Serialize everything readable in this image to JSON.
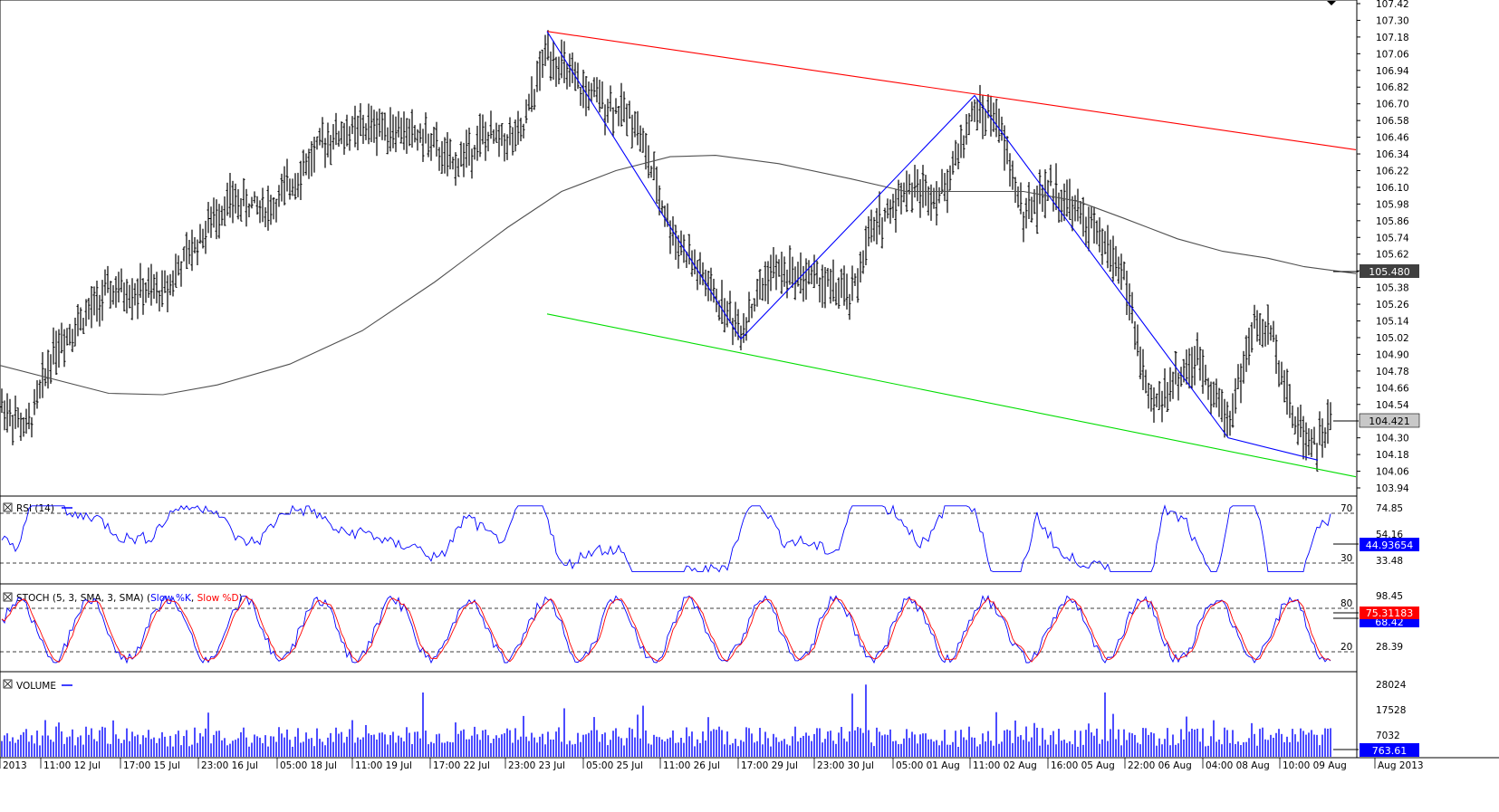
{
  "chart_data": [
    {
      "type": "bar",
      "subtype": "ohlc",
      "panel": "price",
      "ylim": [
        103.94,
        107.42
      ],
      "y_ticks": [
        "107.42",
        "107.30",
        "107.18",
        "107.06",
        "106.94",
        "106.82",
        "106.70",
        "106.58",
        "106.46",
        "106.34",
        "106.22",
        "106.10",
        "105.98",
        "105.86",
        "105.74",
        "105.62",
        "105.50",
        "105.38",
        "105.26",
        "105.14",
        "105.02",
        "104.90",
        "104.78",
        "104.66",
        "104.54",
        "104.30",
        "104.18",
        "104.06",
        "103.94"
      ],
      "overlays": [
        {
          "name": "moving-average",
          "color": "#505050",
          "points": [
            [
              0,
              104.82
            ],
            [
              120,
              104.62
            ],
            [
              180,
              104.61
            ],
            [
              240,
              104.68
            ],
            [
              320,
              104.83
            ],
            [
              400,
              105.07
            ],
            [
              480,
              105.42
            ],
            [
              560,
              105.81
            ],
            [
              620,
              106.07
            ],
            [
              680,
              106.22
            ],
            [
              740,
              106.32
            ],
            [
              790,
              106.33
            ],
            [
              860,
              106.27
            ],
            [
              940,
              106.16
            ],
            [
              1000,
              106.07
            ],
            [
              1080,
              106.07
            ],
            [
              1130,
              106.07
            ],
            [
              1190,
              106.0
            ],
            [
              1240,
              105.88
            ],
            [
              1300,
              105.73
            ],
            [
              1350,
              105.64
            ],
            [
              1400,
              105.59
            ],
            [
              1440,
              105.53
            ],
            [
              1497,
              105.48
            ]
          ]
        },
        {
          "name": "channel-top",
          "color": "#ff0000",
          "points": [
            [
              604,
              107.22
            ],
            [
              1497,
              106.37
            ]
          ]
        },
        {
          "name": "channel-bottom",
          "color": "#00dd00",
          "points": [
            [
              604,
              105.19
            ],
            [
              1497,
              104.02
            ]
          ]
        },
        {
          "name": "zigzag",
          "color": "#0000ff",
          "points": [
            [
              604,
              107.22
            ],
            [
              818,
              105.01
            ],
            [
              1076,
              106.76
            ],
            [
              1356,
              104.3
            ],
            [
              1455,
              104.14
            ]
          ]
        }
      ],
      "last_ma": "105.480",
      "last_price": "104.421"
    },
    {
      "type": "line",
      "panel": "rsi",
      "title": "RSI (14)",
      "ylim": [
        20,
        80
      ],
      "y_ticks": [
        "74.85",
        "54.16",
        "33.48"
      ],
      "levels": [
        [
          "70",
          70
        ],
        [
          "30",
          30
        ]
      ],
      "series": [
        {
          "name": "RSI (14)",
          "color": "#0000ff"
        }
      ],
      "last_value": "44.93654"
    },
    {
      "type": "line",
      "panel": "stoch",
      "title": "STOCH (5, 3, SMA, 3, SMA)",
      "ylim": [
        0,
        110
      ],
      "y_ticks": [
        "98.45",
        "28.39"
      ],
      "levels": [
        [
          "80",
          80
        ],
        [
          "20",
          20
        ]
      ],
      "series": [
        {
          "name": "Slow %K",
          "color": "#0000ff"
        },
        {
          "name": "Slow %D",
          "color": "#ff0000"
        }
      ],
      "last_value": "75.31183",
      "last_value_2": "68.42"
    },
    {
      "type": "bar",
      "panel": "volume",
      "title": "VOLUME",
      "ylim": [
        0,
        32000
      ],
      "y_ticks": [
        "28024",
        "17528",
        "7032"
      ],
      "series": [
        {
          "name": "VOLUME",
          "color": "#0000ff"
        }
      ],
      "last_value": "763.61"
    }
  ],
  "x_axis": {
    "tick_labels": [
      "2013",
      "11:00 12 Jul",
      "17:00 15 Jul",
      "23:00 16 Jul",
      "05:00 18 Jul",
      "11:00 19 Jul",
      "17:00 22 Jul",
      "23:00 23 Jul",
      "05:00 25 Jul",
      "11:00 26 Jul",
      "17:00 29 Jul",
      "23:00 30 Jul",
      "05:00 01 Aug",
      "11:00 02 Aug",
      "16:00 05 Aug",
      "22:00 06 Aug",
      "04:00 08 Aug",
      "10:00 09 Aug",
      "Aug 2013"
    ]
  },
  "panels": {
    "rsi_header": "RSI (14)",
    "stoch_header": "STOCH (5, 3, SMA, 3, SMA)",
    "stoch_k": "Slow %K",
    "stoch_d": "Slow %D",
    "volume_header": "VOLUME"
  },
  "colors": {
    "bars": "#000000",
    "rsi": "#0000ff",
    "stoch_k": "#0000ff",
    "stoch_d": "#ff0000",
    "volume": "#0000ff",
    "price_tag_bg": "#404040",
    "last_tag_bg": "#c8c8c8",
    "rsi_tag_bg": "#0000ff",
    "stoch_tag_bg": "#ff0000"
  }
}
